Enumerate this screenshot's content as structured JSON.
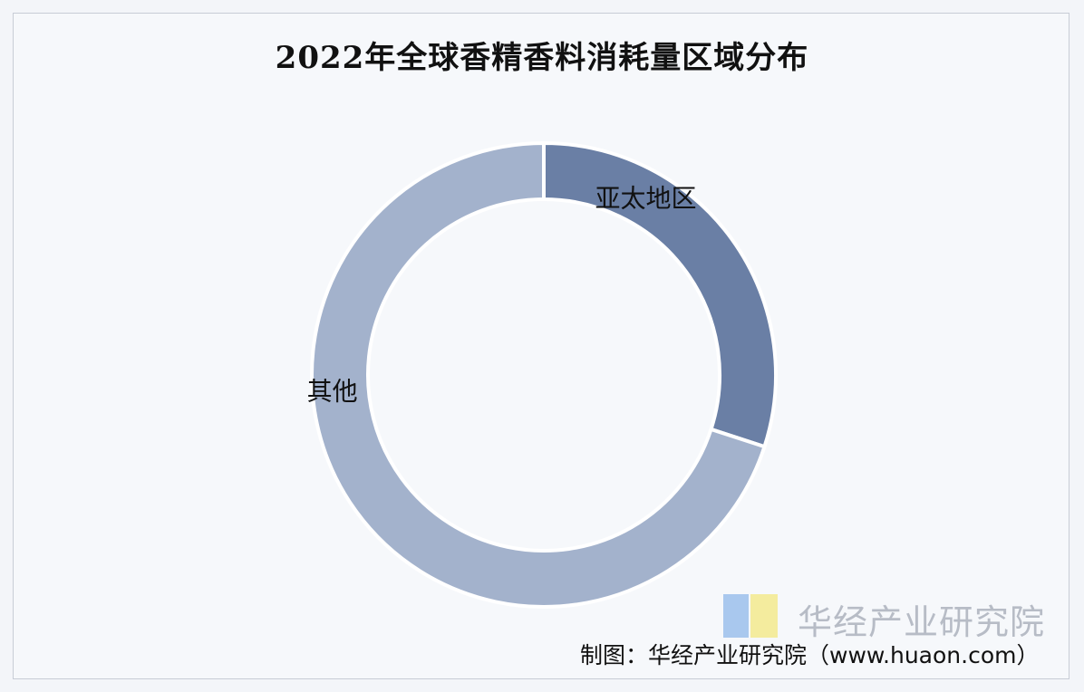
{
  "chart_data": {
    "type": "pie",
    "title": "2022年全球香精香料消耗量区域分布",
    "donut": true,
    "slices": [
      {
        "label": "亚太地区",
        "value": 30,
        "color": "#6a7fa5"
      },
      {
        "label": "其他",
        "value": 70,
        "color": "#a3b2cc"
      }
    ],
    "legend": "none"
  },
  "watermark": {
    "text": "华经产业研究院",
    "url": "www.huaon.com"
  },
  "source": "制图：华经产业研究院（www.huaon.com）"
}
